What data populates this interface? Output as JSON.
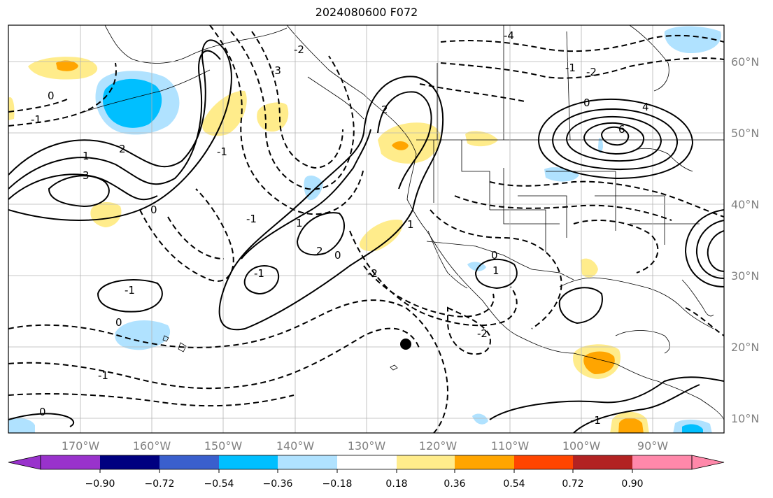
{
  "title": "2024080600 F072",
  "map": {
    "lon_ticks": [
      "170°W",
      "160°W",
      "150°W",
      "140°W",
      "130°W",
      "120°W",
      "110°W",
      "100°W",
      "90°W"
    ],
    "lat_ticks": [
      "60°N",
      "50°N",
      "40°N",
      "30°N",
      "20°N",
      "10°N"
    ],
    "lon_range": [
      -180,
      -80
    ],
    "lat_range": [
      8,
      65
    ],
    "grid": true,
    "contour_labels": [
      "0",
      "-1",
      "-2",
      "-3",
      "-4",
      "1",
      "2",
      "3",
      "4",
      "6",
      "-1",
      "-1",
      "0",
      "-2",
      "2",
      "0",
      "-1",
      "1",
      "1",
      "2",
      "0",
      "-1",
      "-1",
      "-2",
      "1",
      "0",
      "-2",
      "-1",
      "0",
      "0",
      "-1"
    ]
  },
  "colorbar": {
    "ticks": [
      "−0.90",
      "−0.72",
      "−0.54",
      "−0.36",
      "−0.18",
      "0.18",
      "0.36",
      "0.54",
      "0.72",
      "0.90"
    ],
    "colors": [
      "#9932cc",
      "#000080",
      "#3a5fcd",
      "#00bfff",
      "#b0e2ff",
      "#ffffff",
      "#ffec8b",
      "#ffa500",
      "#ff4500",
      "#b22222",
      "#ff88aa"
    ]
  }
}
